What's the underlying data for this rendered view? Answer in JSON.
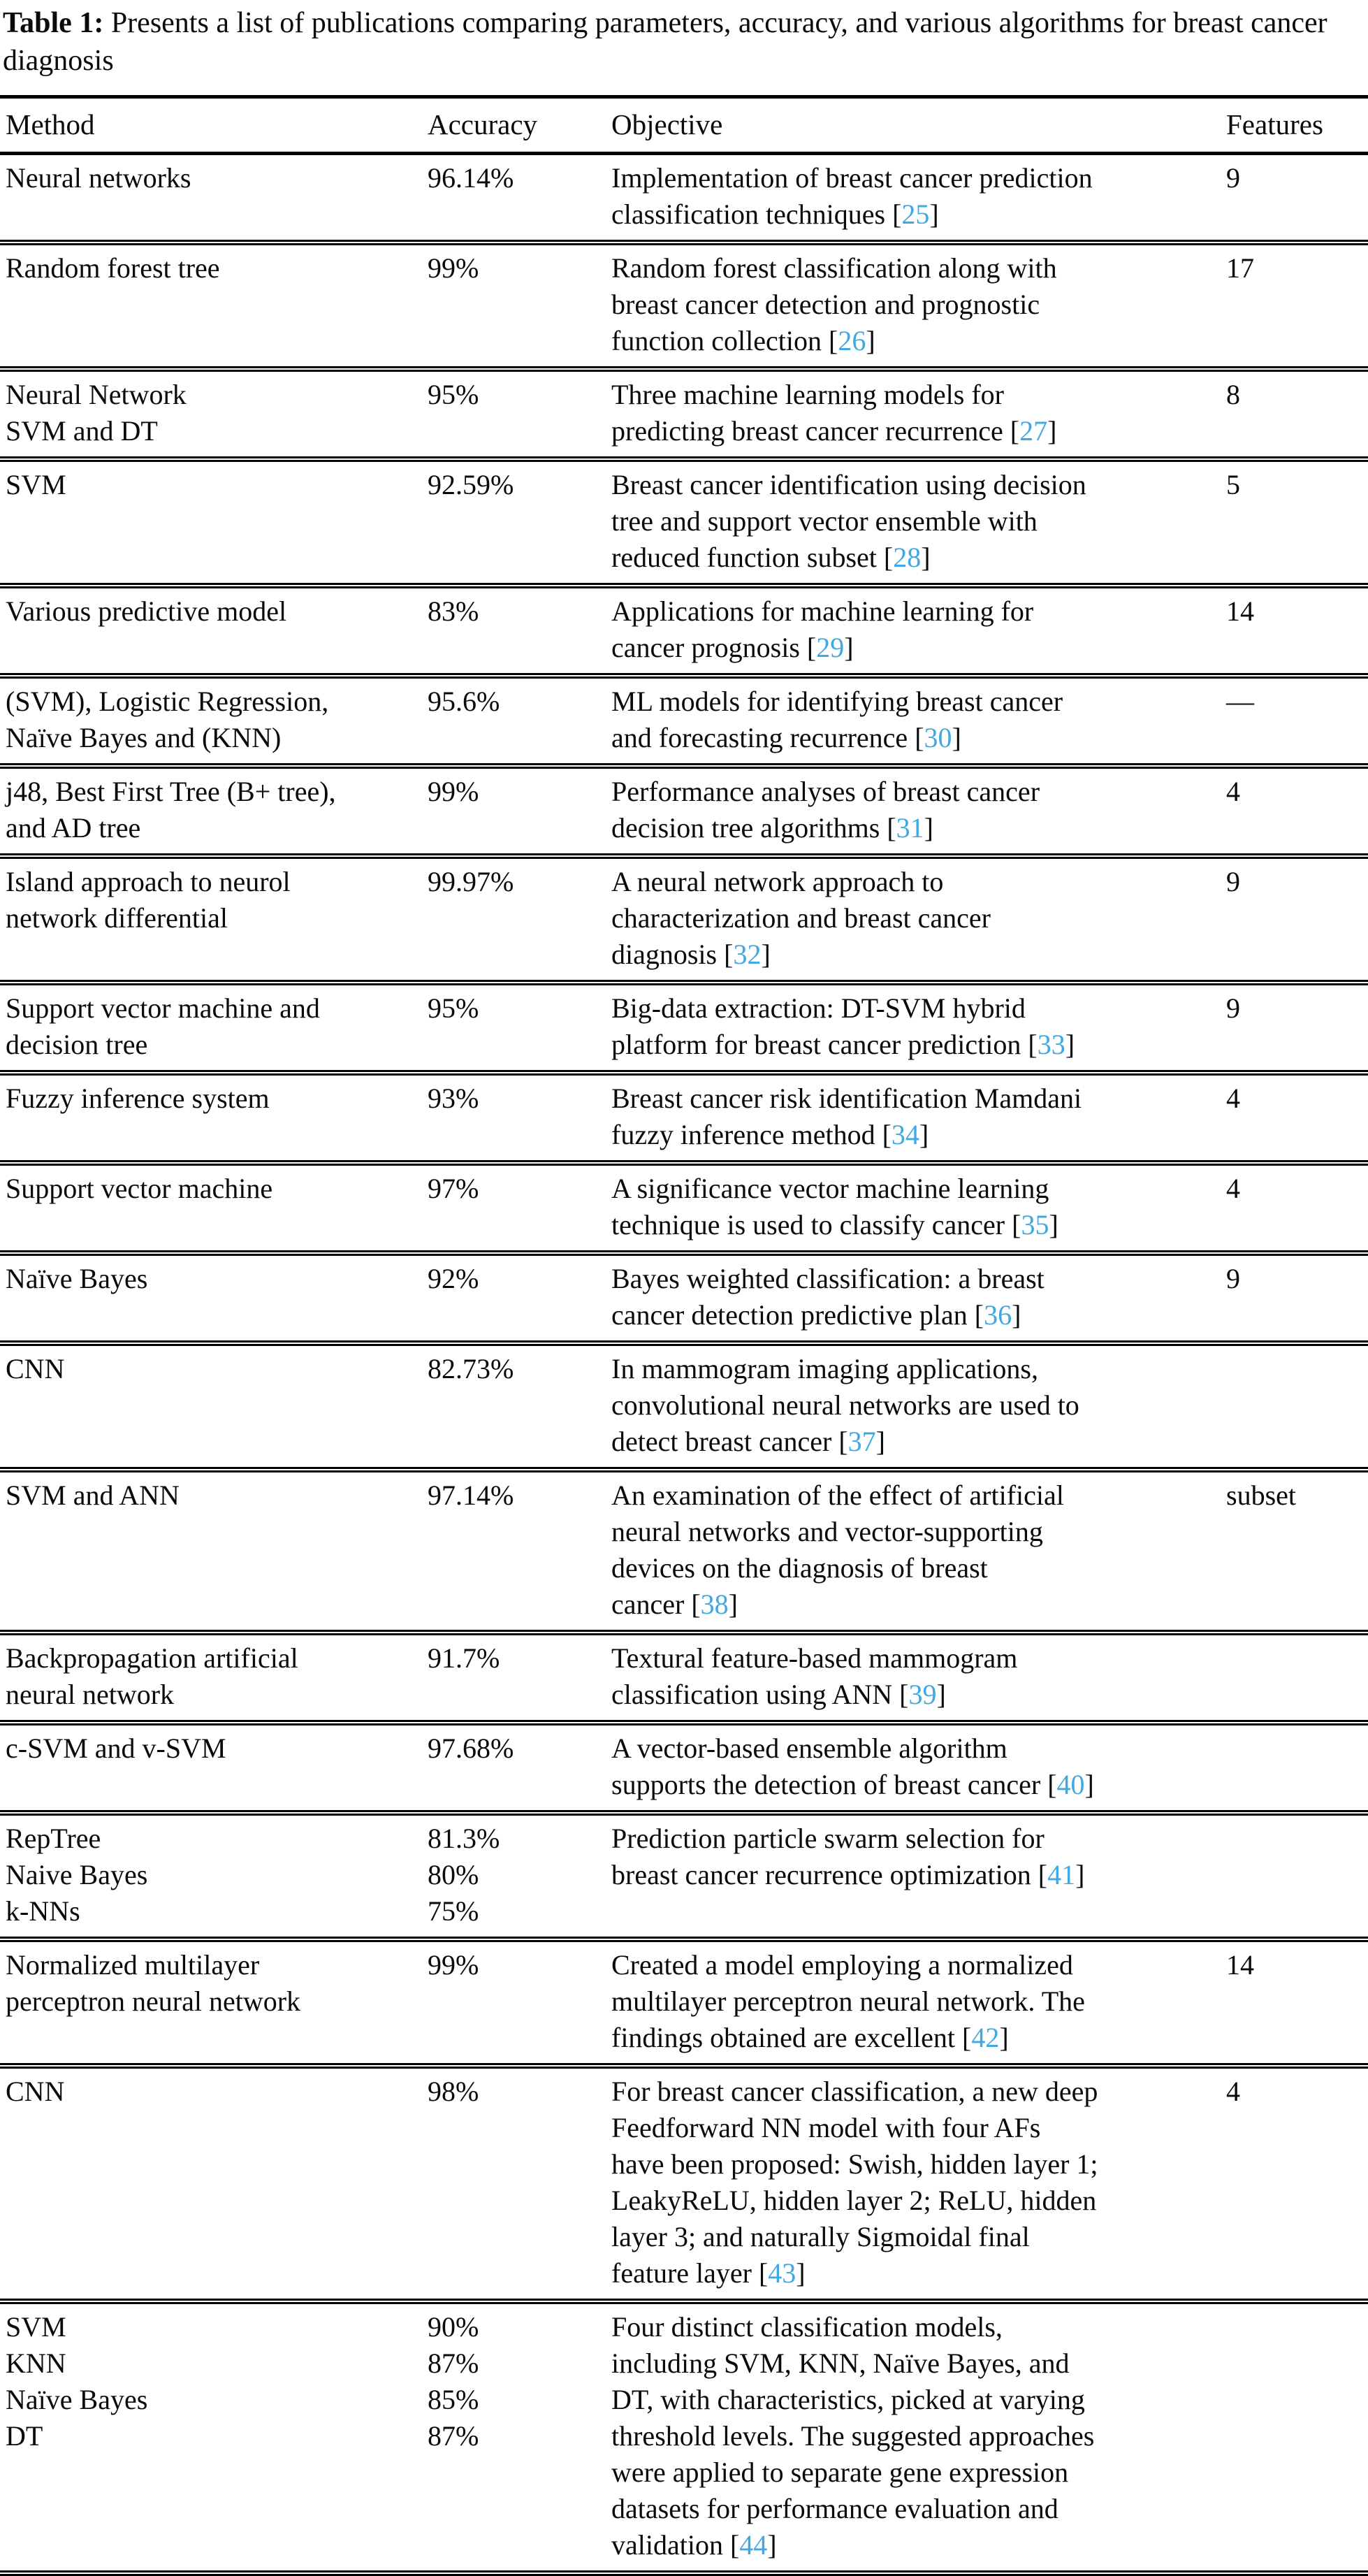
{
  "caption": {
    "label": "Table 1:",
    "text": "Presents a list of publications comparing parameters, accuracy, and various algorithms for breast cancer diagnosis"
  },
  "columns": [
    "Method",
    "Accuracy",
    "Objective",
    "Features"
  ],
  "link_color": "#41a9e0",
  "rows": [
    {
      "method": [
        "Neural networks"
      ],
      "accuracy": [
        "96.14%"
      ],
      "objective": [
        "Implementation of breast cancer prediction",
        "classification techniques"
      ],
      "ref": "25",
      "features": "9"
    },
    {
      "method": [
        "Random forest tree"
      ],
      "accuracy": [
        "99%"
      ],
      "objective": [
        "Random forest classification along with",
        "breast cancer detection and prognostic",
        "function collection"
      ],
      "ref": "26",
      "features": "17"
    },
    {
      "method": [
        "Neural Network",
        "SVM and DT"
      ],
      "accuracy": [
        "95%"
      ],
      "objective": [
        "Three machine learning models for",
        "predicting breast cancer recurrence"
      ],
      "ref": "27",
      "features": "8"
    },
    {
      "method": [
        "SVM"
      ],
      "accuracy": [
        "92.59%"
      ],
      "objective": [
        "Breast cancer identification using decision",
        "tree and support vector ensemble with",
        "reduced function subset"
      ],
      "ref": "28",
      "features": "5"
    },
    {
      "method": [
        "Various predictive model"
      ],
      "accuracy": [
        "83%"
      ],
      "objective": [
        "Applications for machine learning for",
        "cancer prognosis"
      ],
      "ref": "29",
      "features": "14"
    },
    {
      "method": [
        "(SVM), Logistic Regression,",
        "Naïve Bayes and (KNN)"
      ],
      "accuracy": [
        "95.6%"
      ],
      "objective": [
        "ML models for identifying breast cancer",
        "and forecasting recurrence"
      ],
      "ref": "30",
      "features": "—"
    },
    {
      "method": [
        "j48, Best First Tree (B+ tree),",
        "and AD tree"
      ],
      "accuracy": [
        "99%"
      ],
      "objective": [
        "Performance analyses of breast cancer",
        "decision tree algorithms"
      ],
      "ref": "31",
      "features": "4"
    },
    {
      "method": [
        "Island approach to neurol",
        "network differential"
      ],
      "accuracy": [
        "99.97%"
      ],
      "objective": [
        "A neural network approach to",
        "characterization and breast cancer",
        "diagnosis"
      ],
      "ref": "32",
      "features": "9"
    },
    {
      "method": [
        "Support vector machine and",
        "decision tree"
      ],
      "accuracy": [
        "95%"
      ],
      "objective": [
        "Big-data extraction: DT-SVM hybrid",
        "platform for breast cancer prediction"
      ],
      "ref": "33",
      "features": "9"
    },
    {
      "method": [
        "Fuzzy inference system"
      ],
      "accuracy": [
        "93%"
      ],
      "objective": [
        "Breast cancer risk identification Mamdani",
        "fuzzy inference method"
      ],
      "ref": "34",
      "features": "4"
    },
    {
      "method": [
        "Support vector machine"
      ],
      "accuracy": [
        "97%"
      ],
      "objective": [
        "A significance vector machine learning",
        "technique is used to classify cancer"
      ],
      "ref": "35",
      "features": "4"
    },
    {
      "method": [
        "Naïve Bayes"
      ],
      "accuracy": [
        "92%"
      ],
      "objective": [
        "Bayes weighted classification: a breast",
        "cancer detection predictive plan"
      ],
      "ref": "36",
      "features": "9"
    },
    {
      "method": [
        "CNN"
      ],
      "accuracy": [
        "82.73%"
      ],
      "objective": [
        "In mammogram imaging applications,",
        "convolutional neural networks are used to",
        "detect breast cancer"
      ],
      "ref": "37",
      "features": ""
    },
    {
      "method": [
        "SVM and ANN"
      ],
      "accuracy": [
        "97.14%"
      ],
      "objective": [
        "An examination of the effect of artificial",
        "neural networks and vector-supporting",
        "devices on the diagnosis of breast",
        "cancer"
      ],
      "ref": "38",
      "features": "subset"
    },
    {
      "method": [
        "Backpropagation artificial",
        "neural network"
      ],
      "accuracy": [
        "91.7%"
      ],
      "objective": [
        "Textural feature-based mammogram",
        "classification using ANN"
      ],
      "ref": "39",
      "features": ""
    },
    {
      "method": [
        "c-SVM and v-SVM"
      ],
      "accuracy": [
        "97.68%"
      ],
      "objective": [
        "A vector-based ensemble algorithm",
        "supports the detection of breast cancer"
      ],
      "ref": "40",
      "features": ""
    },
    {
      "method": [
        "RepTree",
        "Naive Bayes",
        "k-NNs"
      ],
      "accuracy": [
        "81.3%",
        "80%",
        "75%"
      ],
      "objective": [
        "Prediction particle swarm selection for",
        "breast cancer recurrence optimization"
      ],
      "ref": "41",
      "features": ""
    },
    {
      "method": [
        "Normalized multilayer",
        "perceptron neural network"
      ],
      "accuracy": [
        "99%"
      ],
      "objective": [
        "Created a model employing a normalized",
        "multilayer perceptron neural network. The",
        "findings obtained are excellent"
      ],
      "ref": "42",
      "features": "14"
    },
    {
      "method": [
        "CNN"
      ],
      "accuracy": [
        "98%"
      ],
      "objective": [
        "For breast cancer classification, a new deep",
        "Feedforward NN model with four AFs",
        "have been proposed: Swish, hidden layer 1;",
        "LeakyReLU, hidden layer 2; ReLU, hidden",
        "layer 3; and naturally Sigmoidal final",
        "feature layer"
      ],
      "ref": "43",
      "features": "4"
    },
    {
      "method": [
        "SVM",
        "KNN",
        "Naïve Bayes",
        "DT"
      ],
      "accuracy": [
        "90%",
        "87%",
        "85%",
        "87%"
      ],
      "objective": [
        "Four distinct classification models,",
        "including SVM, KNN, Naïve Bayes, and",
        "DT, with characteristics, picked at varying",
        "threshold levels. The suggested approaches",
        "were applied to separate gene expression",
        "datasets for performance evaluation and",
        "validation"
      ],
      "ref": "44",
      "features": ""
    }
  ]
}
